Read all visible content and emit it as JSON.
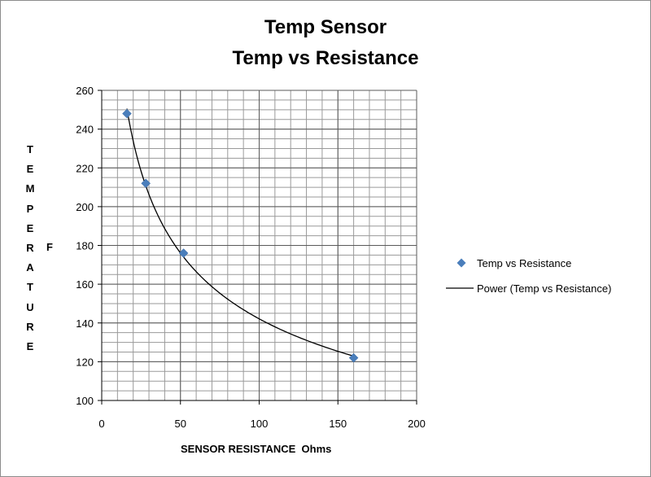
{
  "chart_data": {
    "type": "scatter",
    "title": "Temp Sensor",
    "subtitle": "Temp vs Resistance",
    "xlabel": "SENSOR RESISTANCE  Ohms",
    "ylabel": "TEMPERATURE",
    "ylabel_unit": "F",
    "xlim": [
      0,
      200
    ],
    "ylim": [
      100,
      260
    ],
    "x_ticks": [
      0,
      50,
      100,
      150,
      200
    ],
    "y_ticks": [
      100,
      120,
      140,
      160,
      180,
      200,
      220,
      240,
      260
    ],
    "grid": true,
    "legend_position": "right",
    "series": [
      {
        "name": "Temp vs Resistance",
        "kind": "markers",
        "marker": "diamond",
        "color": "#4a7ebb",
        "x": [
          16,
          28,
          52,
          160
        ],
        "y": [
          248,
          212,
          176,
          122
        ]
      },
      {
        "name": "Power (Temp vs Resistance)",
        "kind": "trendline",
        "trend": "power",
        "color": "#000000"
      }
    ]
  }
}
